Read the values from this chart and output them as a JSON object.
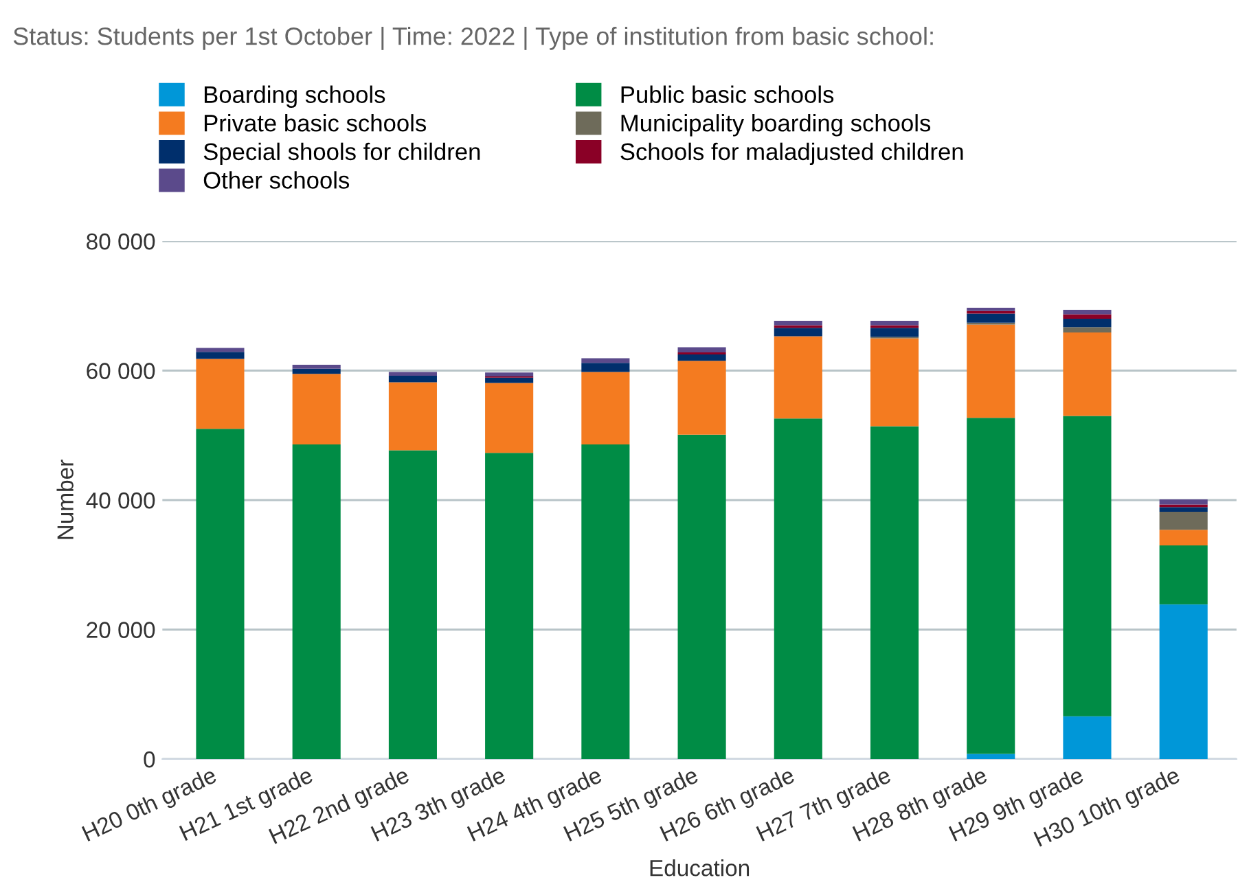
{
  "chart_data": {
    "type": "bar",
    "title": "Status: Students per 1st October | Time: 2022 | Type of institution from basic school:",
    "xlabel": "Education",
    "ylabel": "Number",
    "stacked": true,
    "legend": "top",
    "grid": "y",
    "categories": [
      "H20 0th grade",
      "H21 1st grade",
      "H22 2nd grade",
      "H23 3th grade",
      "H24 4th grade",
      "H25 5th grade",
      "H26 6th grade",
      "H27 7th grade",
      "H28 8th grade",
      "H29 9th grade",
      "H30 10th grade"
    ],
    "ylim": [
      0,
      80000
    ],
    "yticks": [
      {
        "value": 0,
        "label": "0"
      },
      {
        "value": 20000,
        "label": "20 000"
      },
      {
        "value": 40000,
        "label": "40 000"
      },
      {
        "value": 60000,
        "label": "60 000"
      },
      {
        "value": 80000,
        "label": "80 000"
      }
    ],
    "series": [
      {
        "name": "Boarding schools",
        "color": "#0097d8",
        "values": [
          0,
          0,
          0,
          0,
          0,
          0,
          0,
          0,
          800,
          6600,
          23900
        ]
      },
      {
        "name": "Public basic schools",
        "color": "#008c45",
        "values": [
          51000,
          48600,
          47700,
          47300,
          48600,
          50100,
          52600,
          51400,
          51900,
          46400,
          9100
        ]
      },
      {
        "name": "Private basic schools",
        "color": "#f47b20",
        "values": [
          10800,
          10900,
          10500,
          10800,
          11200,
          11400,
          12700,
          13600,
          14400,
          12900,
          2400
        ]
      },
      {
        "name": "Municipality boarding schools",
        "color": "#6e6b5a",
        "values": [
          0,
          0,
          0,
          0,
          0,
          0,
          0,
          200,
          300,
          800,
          2800
        ]
      },
      {
        "name": "Special shools for children",
        "color": "#002f6c",
        "values": [
          1100,
          800,
          1000,
          800,
          1400,
          1000,
          1300,
          1400,
          1400,
          1300,
          700
        ]
      },
      {
        "name": "Schools for maladjusted children",
        "color": "#8a0026",
        "values": [
          0,
          0,
          0,
          200,
          0,
          300,
          400,
          400,
          400,
          700,
          400
        ]
      },
      {
        "name": "Other schools",
        "color": "#5b4a8b",
        "values": [
          600,
          600,
          600,
          600,
          700,
          800,
          700,
          700,
          500,
          700,
          800
        ]
      }
    ]
  }
}
